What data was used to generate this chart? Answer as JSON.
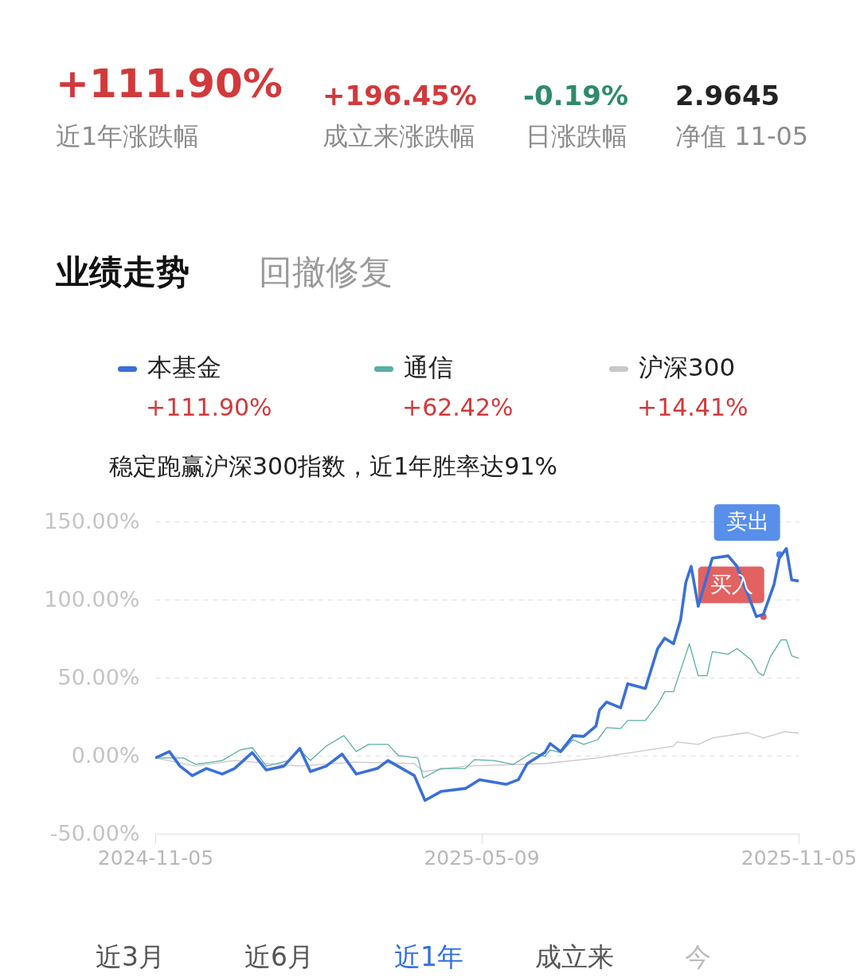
{
  "chart_data": {
    "type": "line",
    "xlim": [
      "2024-11-05",
      "2025-11-05"
    ],
    "xticks": [
      "2024-11-05",
      "2025-05-09",
      "2025-11-05"
    ],
    "ylim": [
      -50,
      150
    ],
    "yticks": [
      {
        "value": -50,
        "label": "-50.00%"
      },
      {
        "value": 0,
        "label": "0.00%"
      },
      {
        "value": 50,
        "label": "50.00%"
      },
      {
        "value": 100,
        "label": "100.00%"
      },
      {
        "value": 150,
        "label": "150.00%"
      }
    ],
    "grid": "y",
    "legend": "top",
    "series": [
      {
        "name": "本基金",
        "color": "#3a6fd8",
        "x": [
          "2024-11-05",
          "2024-11-13",
          "2024-11-19",
          "2024-11-26",
          "2024-12-04",
          "2024-12-13",
          "2024-12-20",
          "2024-12-30",
          "2025-01-07",
          "2025-01-17",
          "2025-01-26",
          "2025-02-01",
          "2025-02-10",
          "2025-02-19",
          "2025-02-27",
          "2025-03-11",
          "2025-03-17",
          "2025-04-01",
          "2025-04-07",
          "2025-04-16",
          "2025-04-30",
          "2025-05-08",
          "2025-05-23",
          "2025-05-30",
          "2025-06-04",
          "2025-06-14",
          "2025-06-17",
          "2025-06-23",
          "2025-06-30",
          "2025-07-06",
          "2025-07-13",
          "2025-07-15",
          "2025-07-19",
          "2025-07-27",
          "2025-07-31",
          "2025-08-10",
          "2025-08-17",
          "2025-08-21",
          "2025-08-26",
          "2025-08-30",
          "2025-09-02",
          "2025-09-05",
          "2025-09-09",
          "2025-09-17",
          "2025-09-26",
          "2025-10-01",
          "2025-10-12",
          "2025-10-16",
          "2025-10-22",
          "2025-10-25",
          "2025-10-29",
          "2025-11-01",
          "2025-11-05"
        ],
        "values": [
          -1.5,
          2.6,
          -6.7,
          -12.8,
          -8.2,
          -11.8,
          -8.2,
          2.0,
          -9.2,
          -6.7,
          4.6,
          -10.2,
          -6.7,
          1.0,
          -11.8,
          -8.2,
          -3.1,
          -12.8,
          -28.7,
          -23.0,
          -21.0,
          -15.4,
          -18.4,
          -15.4,
          -5.1,
          2.0,
          7.7,
          2.6,
          12.8,
          12.3,
          19.0,
          29.2,
          34.3,
          30.7,
          46.1,
          43.0,
          68.6,
          75.3,
          71.7,
          87.0,
          111.1,
          121.3,
          95.7,
          126.5,
          128.0,
          121.3,
          89.1,
          90.6,
          109.6,
          126.5,
          132.7,
          112.6,
          111.9
        ]
      },
      {
        "name": "通信",
        "color": "#5aaea6",
        "x": [
          "2024-11-05",
          "2024-11-21",
          "2024-11-28",
          "2024-12-13",
          "2024-12-23",
          "2024-12-30",
          "2025-01-07",
          "2025-01-20",
          "2025-01-26",
          "2025-02-01",
          "2025-02-10",
          "2025-02-20",
          "2025-02-27",
          "2025-03-06",
          "2025-03-17",
          "2025-03-23",
          "2025-04-03",
          "2025-04-06",
          "2025-04-16",
          "2025-04-30",
          "2025-05-05",
          "2025-05-16",
          "2025-05-27",
          "2025-06-07",
          "2025-06-14",
          "2025-06-17",
          "2025-06-23",
          "2025-06-30",
          "2025-07-06",
          "2025-07-14",
          "2025-07-19",
          "2025-07-27",
          "2025-07-31",
          "2025-08-10",
          "2025-08-17",
          "2025-08-21",
          "2025-08-26",
          "2025-08-30",
          "2025-09-02",
          "2025-09-04",
          "2025-09-09",
          "2025-09-14",
          "2025-09-17",
          "2025-09-26",
          "2025-10-01",
          "2025-10-09",
          "2025-10-13",
          "2025-10-16",
          "2025-10-20",
          "2025-10-26",
          "2025-10-29",
          "2025-11-01",
          "2025-11-05"
        ],
        "values": [
          -1.5,
          -1.5,
          -5.6,
          -3.1,
          3.6,
          5.1,
          -6.7,
          -3.1,
          3.6,
          -3.1,
          6.1,
          12.8,
          2.6,
          7.2,
          7.2,
          0,
          -1.5,
          -14.3,
          -8.2,
          -8.2,
          -2.6,
          -3.1,
          -5.6,
          2.0,
          -0.5,
          3.6,
          2.0,
          10.2,
          7.2,
          10.2,
          17.9,
          17.4,
          22.5,
          22.5,
          32.8,
          41.0,
          41.0,
          54.8,
          65.0,
          71.7,
          51.2,
          51.2,
          66.6,
          65.0,
          68.6,
          61.4,
          53.3,
          51.2,
          63.5,
          74.2,
          74.2,
          64.0,
          62.4
        ]
      },
      {
        "name": "沪深300",
        "color": "#c8c8c8",
        "x": [
          "2024-11-05",
          "2024-11-28",
          "2024-12-20",
          "2025-01-26",
          "2025-02-25",
          "2025-04-01",
          "2025-04-06",
          "2025-04-30",
          "2025-05-30",
          "2025-06-14",
          "2025-07-14",
          "2025-07-27",
          "2025-08-26",
          "2025-08-28",
          "2025-09-09",
          "2025-09-17",
          "2025-10-07",
          "2025-10-16",
          "2025-10-28",
          "2025-11-05"
        ],
        "values": [
          -1.5,
          -6.7,
          -3.1,
          -6.7,
          -4.1,
          -5.1,
          -10.2,
          -6.7,
          -5.6,
          -5.1,
          -1.5,
          1.0,
          6.1,
          8.7,
          7.2,
          11.3,
          14.8,
          11.3,
          15.4,
          14.4
        ]
      }
    ],
    "annotations": [
      "+111.90%",
      "近1年涨跌幅",
      "+196.45%",
      "成立来涨跌幅",
      "-0.19%",
      "日涨跌幅",
      "2.9645",
      "净值 11-05",
      "业绩走势",
      "回撤修复",
      "+111.90%",
      "+62.42%",
      "+14.41%",
      "稳定跑赢沪深300指数，近1年胜率达91%",
      "近3月",
      "近6月",
      "近1年",
      "成立来",
      "今",
      {
        "text": "买入",
        "x": "2025-10-16",
        "y": 89
      },
      {
        "text": "卖出",
        "x": "2025-10-25",
        "y": 129
      }
    ]
  }
}
